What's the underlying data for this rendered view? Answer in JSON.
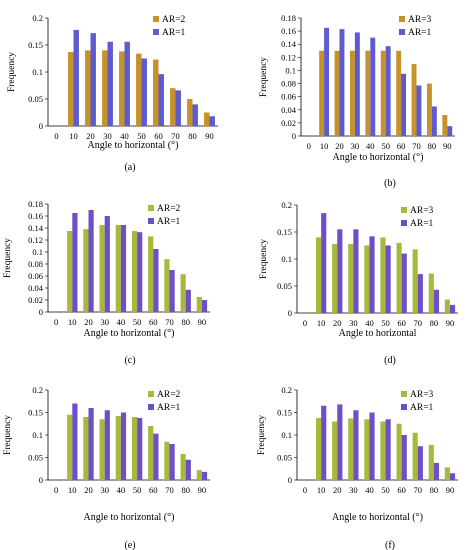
{
  "figure": {
    "panels": [
      {
        "id": "panel-a",
        "label": "(a)"
      },
      {
        "id": "panel-b",
        "label": "(b)"
      },
      {
        "id": "panel-c",
        "label": "(c)"
      },
      {
        "id": "panel-d",
        "label": "(d)"
      },
      {
        "id": "panel-e",
        "label": "(e)"
      },
      {
        "id": "panel-f",
        "label": "(f)"
      }
    ]
  },
  "colors": {
    "series1": "#C8922A",
    "series2": "#5C5CD0",
    "series1_lime": "#A8B83A",
    "series2_violet": "#6F4FC8"
  },
  "chart_data": [
    {
      "type": "bar",
      "panel_label": "(a)",
      "categories": [
        "0",
        "10",
        "20",
        "30",
        "40",
        "50",
        "60",
        "70",
        "80",
        "90"
      ],
      "xlabel": "Angle to horizontal (°)",
      "ylabel": "Frequency",
      "ylim": [
        0,
        0.2
      ],
      "yticks": [
        "0",
        "0.05",
        "0.1",
        "0.15",
        "0.2"
      ],
      "legend": "top-right",
      "series": [
        {
          "name": "AR=2",
          "color": "#C8922A",
          "values": [
            0,
            0.137,
            0.14,
            0.14,
            0.138,
            0.134,
            0.123,
            0.07,
            0.05,
            0.025
          ]
        },
        {
          "name": "AR=1",
          "color": "#5C5CD0",
          "values": [
            0,
            0.178,
            0.172,
            0.156,
            0.156,
            0.125,
            0.096,
            0.066,
            0.04,
            0.018
          ]
        }
      ]
    },
    {
      "type": "bar",
      "panel_label": "(b)",
      "categories": [
        "0",
        "10",
        "20",
        "30",
        "40",
        "50",
        "60",
        "70",
        "80",
        "90"
      ],
      "xlabel": "Angle to horizontal (°)",
      "ylabel": "Frequency",
      "ylim": [
        0,
        0.18
      ],
      "yticks": [
        "0",
        "0.02",
        "0.04",
        "0.06",
        "0.08",
        "0.1",
        "0.12",
        "0.14",
        "0.16",
        "0.18"
      ],
      "legend": "top-right",
      "series": [
        {
          "name": "AR=3",
          "color": "#C8922A",
          "values": [
            0,
            0.13,
            0.13,
            0.13,
            0.13,
            0.13,
            0.13,
            0.11,
            0.08,
            0.032
          ]
        },
        {
          "name": "AR=1",
          "color": "#5C5CD0",
          "values": [
            0,
            0.165,
            0.163,
            0.158,
            0.15,
            0.137,
            0.095,
            0.077,
            0.045,
            0.015
          ]
        }
      ]
    },
    {
      "type": "bar",
      "panel_label": "(c)",
      "categories": [
        "0",
        "10",
        "20",
        "30",
        "40",
        "50",
        "60",
        "70",
        "80",
        "90"
      ],
      "xlabel": "Angle to horizontal (°)",
      "ylabel": "Frequency",
      "ylim": [
        0,
        0.18
      ],
      "yticks": [
        "0",
        "0.02",
        "0.04",
        "0.06",
        "0.08",
        "0.1",
        "0.12",
        "0.14",
        "0.16",
        "0.18"
      ],
      "legend": "top-right",
      "series": [
        {
          "name": "AR=2",
          "color": "#A8B83A",
          "values": [
            0,
            0.135,
            0.138,
            0.145,
            0.145,
            0.135,
            0.126,
            0.088,
            0.063,
            0.025
          ]
        },
        {
          "name": "AR=1",
          "color": "#6F4FC8",
          "values": [
            0,
            0.165,
            0.17,
            0.16,
            0.145,
            0.133,
            0.105,
            0.07,
            0.037,
            0.02
          ]
        }
      ]
    },
    {
      "type": "bar",
      "panel_label": "(d)",
      "categories": [
        "0",
        "10",
        "20",
        "30",
        "40",
        "50",
        "60",
        "70",
        "80",
        "90"
      ],
      "xlabel": "Angle to horizontal",
      "ylabel": "Frequency",
      "ylim": [
        0,
        0.2
      ],
      "yticks": [
        "0",
        "0.05",
        "0.1",
        "0.15",
        "0.2"
      ],
      "legend": "top-right",
      "series": [
        {
          "name": "AR=3",
          "color": "#A8B83A",
          "values": [
            0,
            0.14,
            0.128,
            0.128,
            0.125,
            0.14,
            0.13,
            0.118,
            0.073,
            0.025
          ]
        },
        {
          "name": "AR=1",
          "color": "#6F4FC8",
          "values": [
            0,
            0.185,
            0.155,
            0.155,
            0.142,
            0.125,
            0.11,
            0.072,
            0.043,
            0.015
          ]
        }
      ]
    },
    {
      "type": "bar",
      "panel_label": "(e)",
      "categories": [
        "0",
        "10",
        "20",
        "30",
        "40",
        "50",
        "60",
        "70",
        "80",
        "90"
      ],
      "xlabel": "Angle to horizontal (°)",
      "ylabel": "Frequency",
      "ylim": [
        0,
        0.2
      ],
      "yticks": [
        "0",
        "0.05",
        "0.1",
        "0.15",
        "0.2"
      ],
      "legend": "top-right",
      "series": [
        {
          "name": "AR=2",
          "color": "#A8B83A",
          "values": [
            0,
            0.145,
            0.14,
            0.135,
            0.142,
            0.14,
            0.12,
            0.085,
            0.058,
            0.022
          ]
        },
        {
          "name": "AR=1",
          "color": "#6F4FC8",
          "values": [
            0,
            0.17,
            0.16,
            0.155,
            0.15,
            0.138,
            0.103,
            0.08,
            0.045,
            0.018
          ]
        }
      ]
    },
    {
      "type": "bar",
      "panel_label": "(f)",
      "categories": [
        "0",
        "10",
        "20",
        "30",
        "40",
        "50",
        "60",
        "70",
        "80",
        "90"
      ],
      "xlabel": "Angle to horizontal (°)",
      "ylabel": "Frequency",
      "ylim": [
        0,
        0.2
      ],
      "yticks": [
        "0",
        "0.05",
        "0.1",
        "0.15",
        "0.2"
      ],
      "legend": "top-right",
      "series": [
        {
          "name": "AR=3",
          "color": "#A8B83A",
          "values": [
            0,
            0.138,
            0.13,
            0.137,
            0.135,
            0.13,
            0.125,
            0.105,
            0.078,
            0.028
          ]
        },
        {
          "name": "AR=1",
          "color": "#6F4FC8",
          "values": [
            0,
            0.165,
            0.168,
            0.155,
            0.15,
            0.135,
            0.1,
            0.075,
            0.038,
            0.015
          ]
        }
      ]
    }
  ]
}
